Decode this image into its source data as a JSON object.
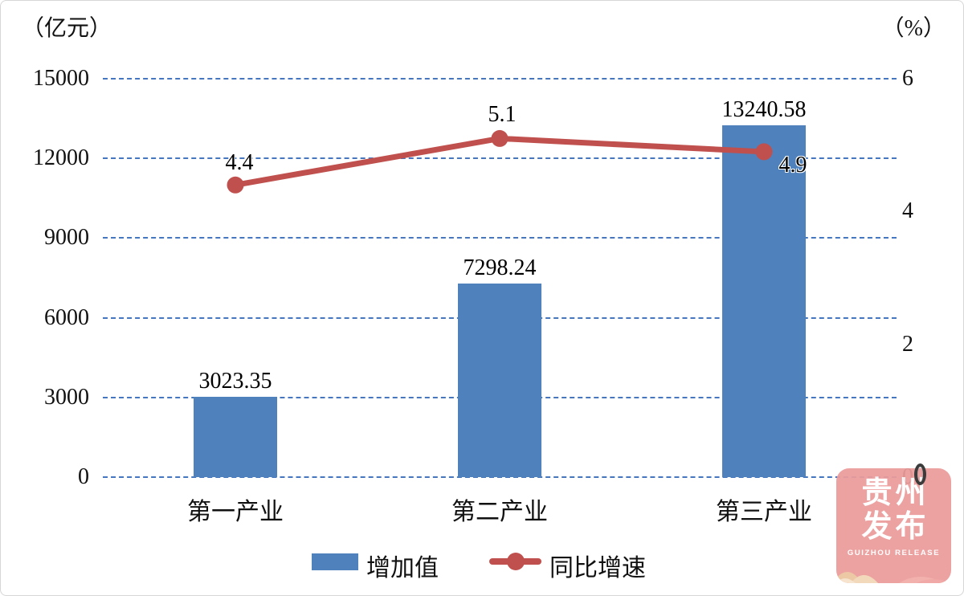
{
  "chart_data": {
    "type": "bar+line",
    "categories": [
      "第一产业",
      "第二产业",
      "第三产业"
    ],
    "series": [
      {
        "name": "增加值",
        "type": "bar",
        "axis": "left",
        "unit": "亿元",
        "values": [
          3023.35,
          7298.24,
          13240.58
        ],
        "color": "#4F81BD"
      },
      {
        "name": "同比增速",
        "type": "line",
        "axis": "right",
        "unit": "%",
        "values": [
          4.4,
          5.1,
          4.9
        ],
        "color": "#C0504D"
      }
    ],
    "left_axis": {
      "label": "（亿元）",
      "ticks": [
        0,
        3000,
        6000,
        9000,
        12000,
        15000
      ],
      "range": [
        0,
        15000
      ]
    },
    "right_axis": {
      "label": "（%）",
      "ticks": [
        0,
        2,
        4,
        6
      ],
      "range": [
        0,
        6
      ]
    },
    "grid": "dashed horizontal blue",
    "legend_position": "bottom",
    "colors": {
      "bar": "#4F81BD",
      "line": "#C0504D",
      "grid": "#4576be"
    },
    "bar_value_labels": [
      "3023.35",
      "7298.24",
      "13240.58"
    ],
    "line_value_labels": [
      "4.4",
      "5.1",
      "4.9"
    ]
  },
  "watermark": {
    "line1": "贵州",
    "line2": "发布",
    "subtitle": "GUIZHOU RELEASE",
    "color": "#EC9C9B"
  }
}
